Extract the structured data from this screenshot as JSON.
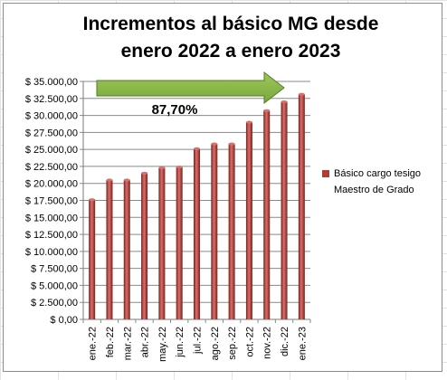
{
  "chart_data": {
    "type": "bar",
    "title_lines": [
      "Incrementos al básico MG desde",
      "enero 2022 a enero 2023"
    ],
    "xlabel": "",
    "ylabel": "",
    "ylim": [
      0,
      35000
    ],
    "ytick_labels": [
      "$ 0,00",
      "$ 2.500,00",
      "$ 5.000,00",
      "$ 7.500,00",
      "$ 10.000,00",
      "$ 12.500,00",
      "$ 15.000,00",
      "$ 17.500,00",
      "$ 20.000,00",
      "$ 22.500,00",
      "$ 25.000,00",
      "$ 27.500,00",
      "$ 30.000,00",
      "$ 32.500,00",
      "$ 35.000,00"
    ],
    "yticks": [
      0,
      2500,
      5000,
      7500,
      10000,
      12500,
      15000,
      17500,
      20000,
      22500,
      25000,
      27500,
      30000,
      32500,
      35000
    ],
    "categories": [
      "ene.-22",
      "feb.-22",
      "mar.-22",
      "abr.-22",
      "may.-22",
      "jun.-22",
      "jul.-22",
      "ago.-22",
      "sep.-22",
      "oct.-22",
      "nov.-22",
      "dic.-22",
      "ene.-23"
    ],
    "series": [
      {
        "name": "Básico cargo tesigo Maestro de Grado",
        "values": [
          17600,
          20500,
          20500,
          21500,
          22300,
          22400,
          25100,
          25800,
          25800,
          29000,
          30700,
          32000,
          33100
        ]
      }
    ],
    "legend_position": "right",
    "grid": true,
    "annotation": {
      "text": "87,70%",
      "arrow_color": "#7aa83c",
      "arrow_edge": "#567a25"
    },
    "bar_color": "#b03a36",
    "bar_dark": "#7a1f1c",
    "bar_light": "#d9706b"
  }
}
